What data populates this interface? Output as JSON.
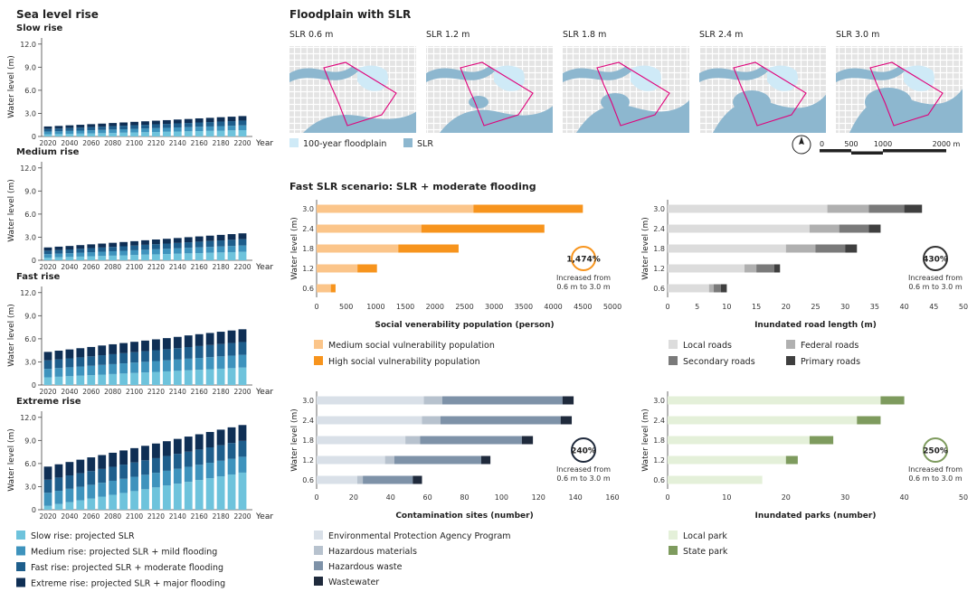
{
  "left": {
    "heading": "Sea level rise",
    "panels": [
      {
        "title": "Slow rise",
        "y_ticks": [
          "12.0",
          "9.0",
          "6.0",
          "3.0",
          "0"
        ]
      },
      {
        "title": "Medium rise",
        "y_ticks": [
          "12.0",
          "9.0",
          "6.0",
          "3.0",
          "0"
        ]
      },
      {
        "title": "Fast rise",
        "y_ticks": [
          "12.0",
          "9.0",
          "6.0",
          "3.0",
          "0"
        ]
      },
      {
        "title": "Extreme rise",
        "y_ticks": [
          "12.0",
          "9.0",
          "6.0",
          "3.0",
          "0"
        ]
      }
    ],
    "ylabel": "Water level (m)",
    "xlabel": "Year",
    "x_ticks": [
      "2020",
      "2040",
      "2060",
      "2080",
      "2100",
      "2120",
      "2140",
      "2160",
      "2180",
      "2200"
    ],
    "legend": [
      {
        "label": "Slow rise: projected SLR",
        "color": "#6ec3dc"
      },
      {
        "label": "Medium rise: projected SLR + mild flooding",
        "color": "#3e93bd"
      },
      {
        "label": "Fast rise: projected SLR + moderate flooding",
        "color": "#1e5e8c"
      },
      {
        "label": "Extreme rise: projected SLR + major flooding",
        "color": "#0f2f55"
      }
    ]
  },
  "maps": {
    "title": "Floodplain with SLR",
    "labels": [
      "SLR 0.6 m",
      "SLR 1.2 m",
      "SLR 1.8 m",
      "SLR 2.4 m",
      "SLR 3.0 m"
    ],
    "legend": [
      {
        "label": "100-year floodplain",
        "color": "#cfeaf7"
      },
      {
        "label": "SLR",
        "color": "#8db7cf"
      }
    ],
    "scale_labels": [
      "0",
      "500",
      "1000",
      "2000 m"
    ]
  },
  "fast": {
    "title": "Fast SLR scenario: SLR + moderate flooding"
  },
  "colors": {
    "border": "#e0007a",
    "water": "#8db7cf",
    "flood": "#cfeaf7"
  },
  "chart_data": [
    {
      "id": "slow-rise",
      "type": "bar",
      "stacked": true,
      "title": "Slow rise",
      "xlabel": "Year",
      "ylabel": "Water level (m)",
      "ylim": [
        0,
        13.5
      ],
      "categories": [
        "2020",
        "2030",
        "2040",
        "2050",
        "2060",
        "2070",
        "2080",
        "2090",
        "2100",
        "2110",
        "2120",
        "2130",
        "2140",
        "2150",
        "2160",
        "2170",
        "2180",
        "2190",
        "2200"
      ],
      "series": [
        {
          "name": "Slow rise: projected SLR",
          "values": [
            0.28,
            0.31,
            0.34,
            0.37,
            0.4,
            0.43,
            0.46,
            0.49,
            0.52,
            0.55,
            0.58,
            0.61,
            0.64,
            0.67,
            0.7,
            0.73,
            0.76,
            0.79,
            0.82
          ]
        },
        {
          "name": "Medium rise: projected SLR + mild flooding",
          "values": [
            0.35,
            0.36,
            0.38,
            0.39,
            0.41,
            0.42,
            0.44,
            0.45,
            0.47,
            0.48,
            0.5,
            0.51,
            0.53,
            0.54,
            0.56,
            0.57,
            0.59,
            0.6,
            0.62
          ]
        },
        {
          "name": "Fast rise: projected SLR + moderate flooding",
          "values": [
            0.35,
            0.36,
            0.38,
            0.39,
            0.41,
            0.42,
            0.44,
            0.45,
            0.47,
            0.48,
            0.5,
            0.51,
            0.53,
            0.54,
            0.56,
            0.57,
            0.59,
            0.6,
            0.62
          ]
        },
        {
          "name": "Extreme rise: projected SLR + major flooding",
          "values": [
            0.32,
            0.34,
            0.35,
            0.37,
            0.38,
            0.4,
            0.41,
            0.43,
            0.44,
            0.46,
            0.47,
            0.49,
            0.5,
            0.52,
            0.53,
            0.55,
            0.56,
            0.58,
            0.59
          ]
        }
      ]
    },
    {
      "id": "medium-rise",
      "type": "bar",
      "stacked": true,
      "title": "Medium rise",
      "xlabel": "Year",
      "ylabel": "Water level (m)",
      "ylim": [
        0,
        13.5
      ],
      "categories": [
        "2020",
        "2030",
        "2040",
        "2050",
        "2060",
        "2070",
        "2080",
        "2090",
        "2100",
        "2110",
        "2120",
        "2130",
        "2140",
        "2150",
        "2160",
        "2170",
        "2180",
        "2190",
        "2200"
      ],
      "series": [
        {
          "name": "Slow rise: projected SLR",
          "values": [
            0.35,
            0.39,
            0.43,
            0.48,
            0.52,
            0.56,
            0.6,
            0.64,
            0.69,
            0.73,
            0.77,
            0.81,
            0.85,
            0.9,
            0.94,
            0.98,
            1.02,
            1.06,
            1.1
          ]
        },
        {
          "name": "Medium rise: projected SLR + mild flooding",
          "values": [
            0.45,
            0.47,
            0.49,
            0.51,
            0.53,
            0.55,
            0.57,
            0.59,
            0.61,
            0.64,
            0.66,
            0.68,
            0.7,
            0.72,
            0.74,
            0.76,
            0.78,
            0.8,
            0.82
          ]
        },
        {
          "name": "Fast rise: projected SLR + moderate flooding",
          "values": [
            0.45,
            0.47,
            0.49,
            0.51,
            0.53,
            0.55,
            0.57,
            0.59,
            0.61,
            0.64,
            0.66,
            0.68,
            0.7,
            0.72,
            0.74,
            0.76,
            0.78,
            0.8,
            0.82
          ]
        },
        {
          "name": "Extreme rise: projected SLR + major flooding",
          "values": [
            0.42,
            0.44,
            0.45,
            0.47,
            0.49,
            0.51,
            0.53,
            0.55,
            0.57,
            0.59,
            0.61,
            0.62,
            0.64,
            0.66,
            0.68,
            0.7,
            0.72,
            0.74,
            0.76
          ]
        }
      ]
    },
    {
      "id": "fast-rise",
      "type": "bar",
      "stacked": true,
      "title": "Fast rise",
      "xlabel": "Year",
      "ylabel": "Water level (m)",
      "ylim": [
        0,
        13.5
      ],
      "categories": [
        "2020",
        "2030",
        "2040",
        "2050",
        "2060",
        "2070",
        "2080",
        "2090",
        "2100",
        "2110",
        "2120",
        "2130",
        "2140",
        "2150",
        "2160",
        "2170",
        "2180",
        "2190",
        "2200"
      ],
      "series": [
        {
          "name": "Slow rise: projected SLR",
          "values": [
            1.0,
            1.07,
            1.14,
            1.21,
            1.28,
            1.35,
            1.42,
            1.49,
            1.56,
            1.63,
            1.7,
            1.77,
            1.84,
            1.91,
            1.98,
            2.05,
            2.12,
            2.19,
            2.26
          ]
        },
        {
          "name": "Medium rise: projected SLR + mild flooding",
          "values": [
            1.1,
            1.13,
            1.16,
            1.19,
            1.22,
            1.26,
            1.29,
            1.32,
            1.35,
            1.38,
            1.41,
            1.44,
            1.47,
            1.51,
            1.54,
            1.57,
            1.6,
            1.63,
            1.66
          ]
        },
        {
          "name": "Fast rise: projected SLR + moderate flooding",
          "values": [
            1.1,
            1.13,
            1.16,
            1.19,
            1.22,
            1.26,
            1.29,
            1.32,
            1.35,
            1.38,
            1.41,
            1.44,
            1.47,
            1.51,
            1.54,
            1.57,
            1.6,
            1.63,
            1.66
          ]
        },
        {
          "name": "Extreme rise: projected SLR + major flooding",
          "values": [
            1.1,
            1.13,
            1.16,
            1.19,
            1.22,
            1.26,
            1.29,
            1.32,
            1.35,
            1.38,
            1.41,
            1.44,
            1.47,
            1.51,
            1.54,
            1.57,
            1.6,
            1.63,
            1.66
          ]
        }
      ]
    },
    {
      "id": "extreme-rise",
      "type": "bar",
      "stacked": true,
      "title": "Extreme rise",
      "xlabel": "Year",
      "ylabel": "Water level (m)",
      "ylim": [
        0,
        13.5
      ],
      "categories": [
        "2020",
        "2030",
        "2040",
        "2050",
        "2060",
        "2070",
        "2080",
        "2090",
        "2100",
        "2110",
        "2120",
        "2130",
        "2140",
        "2150",
        "2160",
        "2170",
        "2180",
        "2190",
        "2200"
      ],
      "series": [
        {
          "name": "Slow rise: projected SLR",
          "values": [
            0.5,
            0.74,
            0.98,
            1.22,
            1.46,
            1.7,
            1.94,
            2.18,
            2.42,
            2.66,
            2.9,
            3.14,
            3.38,
            3.62,
            3.86,
            4.1,
            4.34,
            4.58,
            4.82
          ]
        },
        {
          "name": "Medium rise: projected SLR + mild flooding",
          "values": [
            1.7,
            1.72,
            1.74,
            1.76,
            1.78,
            1.8,
            1.82,
            1.84,
            1.86,
            1.88,
            1.9,
            1.92,
            1.94,
            1.96,
            1.98,
            2.0,
            2.02,
            2.04,
            2.06
          ]
        },
        {
          "name": "Fast rise: projected SLR + moderate flooding",
          "values": [
            1.7,
            1.72,
            1.74,
            1.76,
            1.78,
            1.8,
            1.82,
            1.84,
            1.86,
            1.88,
            1.9,
            1.92,
            1.94,
            1.96,
            1.98,
            2.0,
            2.02,
            2.04,
            2.06
          ]
        },
        {
          "name": "Extreme rise: projected SLR + major flooding",
          "values": [
            1.7,
            1.72,
            1.74,
            1.76,
            1.78,
            1.8,
            1.82,
            1.84,
            1.86,
            1.88,
            1.9,
            1.92,
            1.94,
            1.96,
            1.98,
            2.0,
            2.02,
            2.04,
            2.06
          ]
        }
      ]
    },
    {
      "id": "social-vulnerability",
      "type": "bar",
      "orientation": "horizontal",
      "stacked": true,
      "title": "",
      "xlabel": "Social venerability population (person)",
      "ylabel": "Water level (m)",
      "xlim": [
        0,
        5000
      ],
      "x_ticks": [
        "0",
        "500",
        "1000",
        "1500",
        "2000",
        "2500",
        "3000",
        "3500",
        "4000",
        "4500",
        "5000"
      ],
      "categories": [
        "3.0",
        "2.4",
        "1.8",
        "1.2",
        "0.6"
      ],
      "series": [
        {
          "name": "Medium social vulnerability population",
          "color": "#fbc58a",
          "values": [
            2650,
            1770,
            1380,
            690,
            240
          ]
        },
        {
          "name": "High social vulnerability population",
          "color": "#f7941d",
          "values": [
            1850,
            2080,
            1020,
            330,
            80
          ]
        }
      ],
      "annotation": {
        "value": "1,474%",
        "caption": "Increased from 0.6 m to 3.0 m",
        "color": "#f7941d"
      }
    },
    {
      "id": "road-length",
      "type": "bar",
      "orientation": "horizontal",
      "stacked": true,
      "title": "",
      "xlabel": "Inundated road length (m)",
      "ylabel": "Water level (m)",
      "xlim": [
        0,
        50
      ],
      "x_ticks": [
        "0",
        "5",
        "10",
        "15",
        "20",
        "25",
        "30",
        "35",
        "40",
        "45",
        "50"
      ],
      "categories": [
        "3.0",
        "2.4",
        "1.8",
        "1.2",
        "0.6"
      ],
      "series": [
        {
          "name": "Local roads",
          "color": "#dcdcdc",
          "values": [
            27,
            24,
            20,
            13,
            7
          ]
        },
        {
          "name": "Federal roads",
          "color": "#b0b0b0",
          "values": [
            7,
            5,
            5,
            2,
            0.8
          ]
        },
        {
          "name": "Secondary roads",
          "color": "#7a7a7a",
          "values": [
            6,
            5,
            5,
            3,
            1.2
          ]
        },
        {
          "name": "Primary roads",
          "color": "#3f3f3f",
          "values": [
            3,
            2,
            2,
            1,
            1
          ]
        }
      ],
      "annotation": {
        "value": "430%",
        "caption": "Increased from 0.6 m to 3.0 m",
        "color": "#333333"
      }
    },
    {
      "id": "contamination-sites",
      "type": "bar",
      "orientation": "horizontal",
      "stacked": true,
      "title": "",
      "xlabel": "Contamination sites (number)",
      "ylabel": "Water level (m)",
      "xlim": [
        0,
        160
      ],
      "x_ticks": [
        "0",
        "20",
        "40",
        "60",
        "80",
        "100",
        "120",
        "140",
        "160"
      ],
      "categories": [
        "3.0",
        "2.4",
        "1.8",
        "1.2",
        "0.6"
      ],
      "series": [
        {
          "name": "Environmental Protection Agency Program",
          "color": "#d9e0e8",
          "values": [
            58,
            57,
            48,
            37,
            22
          ]
        },
        {
          "name": "Hazardous materials",
          "color": "#b7c2ce",
          "values": [
            10,
            10,
            8,
            5,
            3
          ]
        },
        {
          "name": "Hazardous waste",
          "color": "#7e92a8",
          "values": [
            65,
            65,
            55,
            47,
            27
          ]
        },
        {
          "name": "Wastewater",
          "color": "#1f2a3c",
          "values": [
            6,
            6,
            6,
            5,
            5
          ]
        }
      ],
      "annotation": {
        "value": "240%",
        "caption": "Increased from 0.6 m to 3.0 m",
        "color": "#1f2a3c"
      }
    },
    {
      "id": "inundated-parks",
      "type": "bar",
      "orientation": "horizontal",
      "stacked": true,
      "title": "",
      "xlabel": "Inundated parks (number)",
      "ylabel": "Water level (m)",
      "xlim": [
        0,
        50
      ],
      "x_ticks": [
        "0",
        "10",
        "20",
        "30",
        "40",
        "50"
      ],
      "categories": [
        "3.0",
        "2.4",
        "1.8",
        "1.2",
        "0.6"
      ],
      "series": [
        {
          "name": "Local park",
          "color": "#e4f0d9",
          "values": [
            36,
            32,
            24,
            20,
            16
          ]
        },
        {
          "name": "State park",
          "color": "#7e9b5e",
          "values": [
            4,
            4,
            4,
            2,
            0
          ]
        }
      ],
      "annotation": {
        "value": "250%",
        "caption": "Increased from 0.6 m to 3.0 m",
        "color": "#7e9b5e"
      }
    }
  ]
}
